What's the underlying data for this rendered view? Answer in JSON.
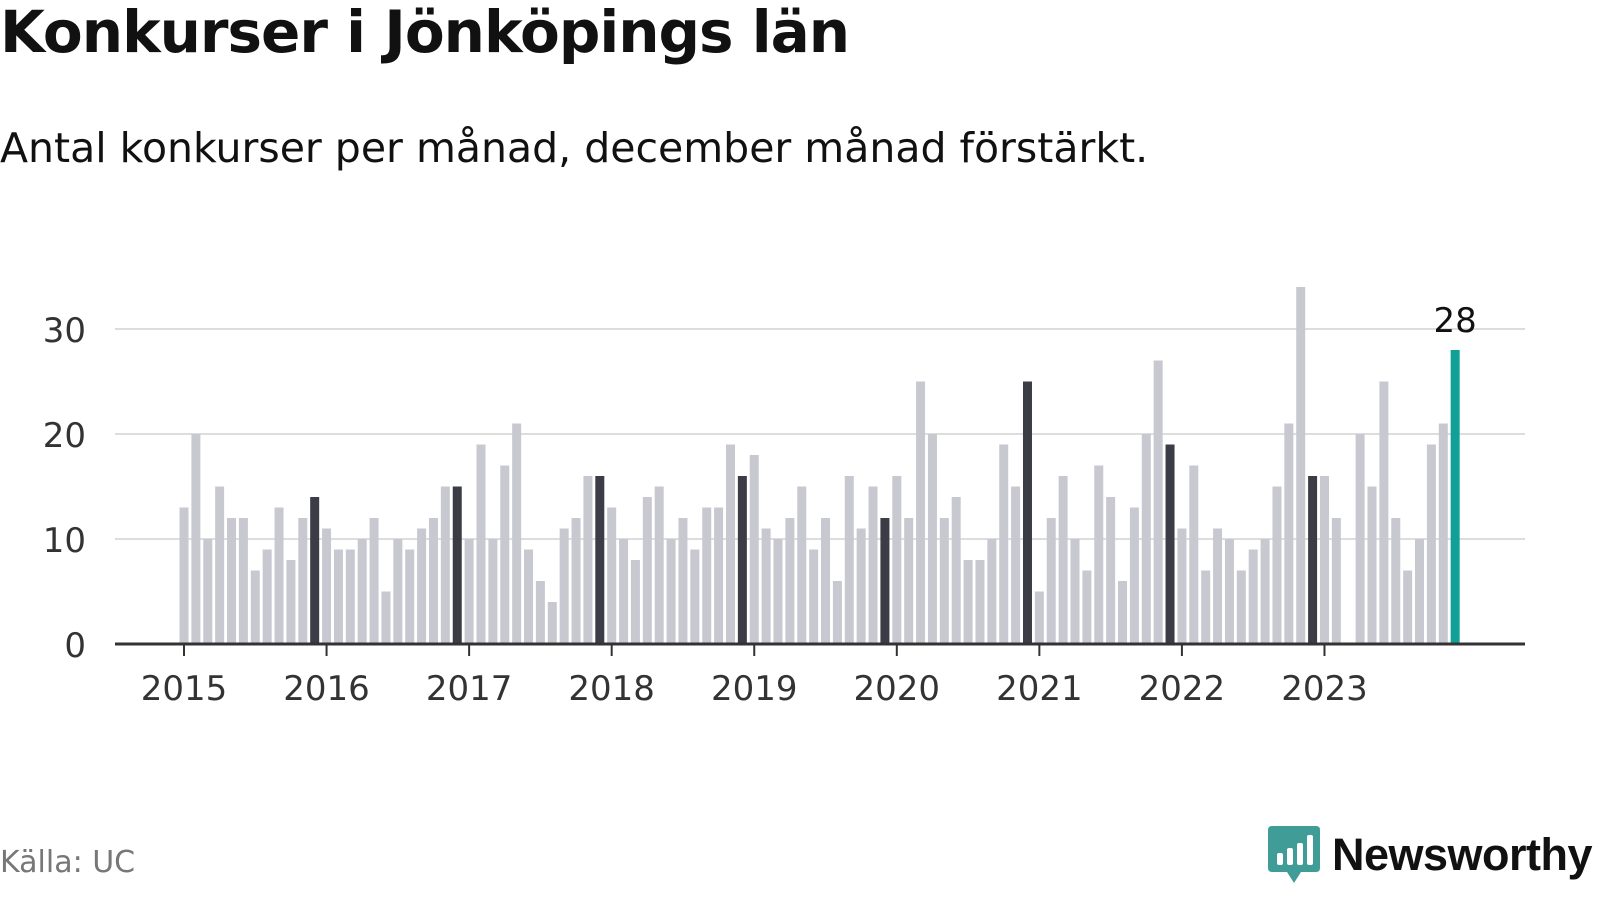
{
  "title": "Konkurser i Jönköpings län",
  "subtitle": "Antal konkurser per månad, december månad förstärkt.",
  "source": "Källa: UC",
  "brand": {
    "name": "Newsworthy",
    "icon": "newsworthy-bar-chart-icon",
    "color": "#3f9c96"
  },
  "colors": {
    "regular": "#c8c8d0",
    "december": "#3c3c46",
    "latest": "#11a098",
    "grid": "#dddddd",
    "axis": "#333333"
  },
  "chart_data": {
    "type": "bar",
    "title": "Konkurser i Jönköpings län",
    "subtitle": "Antal konkurser per månad, december månad förstärkt.",
    "xlabel": "",
    "ylabel": "",
    "ylim": [
      0,
      34
    ],
    "yticks": [
      0,
      10,
      20,
      30
    ],
    "xticks": [
      "2015",
      "2016",
      "2017",
      "2018",
      "2019",
      "2020",
      "2021",
      "2022",
      "2023"
    ],
    "grid": true,
    "start": "2015-01",
    "end": "2023-12",
    "highlight": "december",
    "latest_label": "28",
    "values": [
      13,
      20,
      10,
      15,
      12,
      12,
      7,
      9,
      13,
      8,
      12,
      14,
      11,
      9,
      9,
      10,
      12,
      5,
      10,
      9,
      11,
      12,
      15,
      15,
      10,
      19,
      10,
      17,
      21,
      9,
      6,
      4,
      11,
      12,
      16,
      16,
      13,
      10,
      8,
      14,
      15,
      10,
      12,
      9,
      13,
      13,
      19,
      16,
      18,
      11,
      10,
      12,
      15,
      9,
      12,
      6,
      16,
      11,
      15,
      12,
      16,
      12,
      25,
      20,
      12,
      14,
      8,
      8,
      10,
      19,
      15,
      25,
      5,
      12,
      16,
      10,
      7,
      17,
      14,
      6,
      13,
      20,
      27,
      19,
      11,
      17,
      7,
      11,
      10,
      7,
      9,
      10,
      15,
      21,
      34,
      16,
      16,
      12,
      0,
      20,
      15,
      25,
      12,
      7,
      10,
      19,
      21,
      28
    ]
  }
}
